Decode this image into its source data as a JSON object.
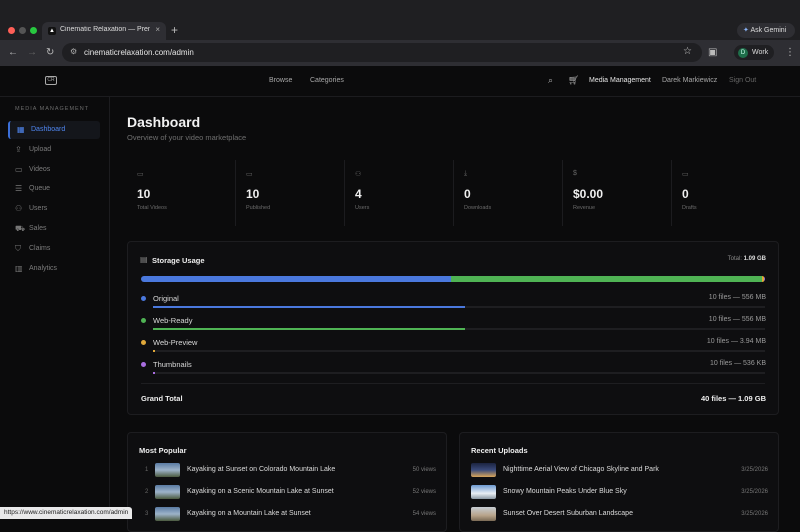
{
  "browser": {
    "tab_title": "Cinematic Relaxation — Premium",
    "tab_close": "×",
    "new_tab": "+",
    "ask_gemini": "Ask Gemini",
    "url": "cinematicrelaxation.com/admin",
    "profile_initial": "D",
    "profile_label": "Work",
    "status_url": "https://www.cinematicrelaxation.com/admin"
  },
  "header": {
    "logo": "CR",
    "nav": [
      "Browse",
      "Categories"
    ],
    "media_management": "Media Management",
    "user_name": "Darek Markiewicz",
    "sign_out": "Sign Out"
  },
  "sidebar": {
    "heading": "MEDIA MANAGEMENT",
    "items": [
      {
        "label": "Dashboard",
        "icon": "grid-icon"
      },
      {
        "label": "Upload",
        "icon": "upload-icon"
      },
      {
        "label": "Videos",
        "icon": "video-icon"
      },
      {
        "label": "Queue",
        "icon": "list-icon"
      },
      {
        "label": "Users",
        "icon": "users-icon"
      },
      {
        "label": "Sales",
        "icon": "cart-icon"
      },
      {
        "label": "Claims",
        "icon": "shield-icon"
      },
      {
        "label": "Analytics",
        "icon": "chart-icon"
      }
    ]
  },
  "main": {
    "title": "Dashboard",
    "subtitle": "Overview of your video marketplace"
  },
  "stats": [
    {
      "value": "10",
      "label": "Total Videos",
      "icon": "video-icon"
    },
    {
      "value": "10",
      "label": "Published",
      "icon": "video-icon"
    },
    {
      "value": "4",
      "label": "Users",
      "icon": "users-icon"
    },
    {
      "value": "0",
      "label": "Downloads",
      "icon": "download-icon"
    },
    {
      "value": "$0.00",
      "label": "Revenue",
      "icon": "dollar-icon"
    },
    {
      "value": "0",
      "label": "Drafts",
      "icon": "video-icon"
    }
  ],
  "storage": {
    "title": "Storage Usage",
    "total_label": "Total:",
    "total_value": "1.09 GB",
    "rows": [
      {
        "label": "Original",
        "value": "10 files — 556 MB",
        "color": "#4a78dd",
        "fraction": 0.51
      },
      {
        "label": "Web-Ready",
        "value": "10 files — 556 MB",
        "color": "#4fb354",
        "fraction": 0.51
      },
      {
        "label": "Web-Preview",
        "value": "10 files — 3.94 MB",
        "color": "#e0a83a",
        "fraction": 0.004
      },
      {
        "label": "Thumbnails",
        "value": "10 files — 536 KB",
        "color": "#a96ee0",
        "fraction": 0.001
      }
    ],
    "grand_total_label": "Grand Total",
    "grand_total_value": "40 files — 1.09 GB"
  },
  "most_popular": {
    "title": "Most Popular",
    "items": [
      {
        "rank": "1",
        "title": "Kayaking at Sunset on Colorado Mountain Lake",
        "views": "50 views"
      },
      {
        "rank": "2",
        "title": "Kayaking on a Scenic Mountain Lake at Sunset",
        "views": "52 views"
      },
      {
        "rank": "3",
        "title": "Kayaking on a Mountain Lake at Sunset",
        "views": "54 views"
      }
    ]
  },
  "recent_uploads": {
    "title": "Recent Uploads",
    "items": [
      {
        "title": "Nighttime Aerial View of Chicago Skyline and Park",
        "date": "3/25/2026"
      },
      {
        "title": "Snowy Mountain Peaks Under Blue Sky",
        "date": "3/25/2026"
      },
      {
        "title": "Sunset Over Desert Suburban Landscape",
        "date": "3/25/2026"
      }
    ]
  },
  "colors": {
    "accent": "#3b6fd8",
    "background": "#0b0b0c"
  }
}
